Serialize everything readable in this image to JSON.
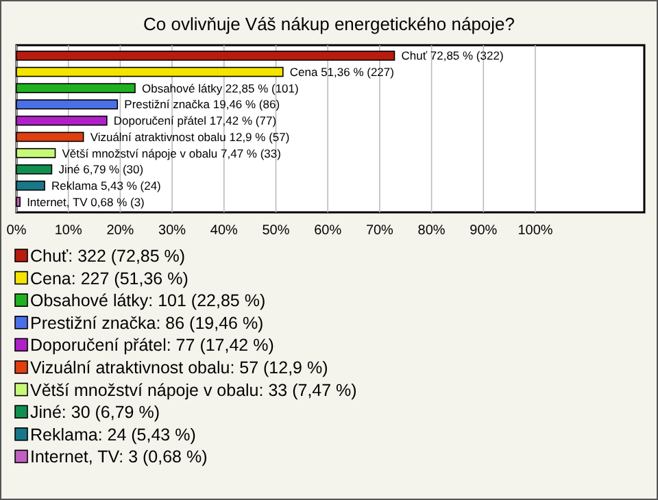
{
  "chart_data": {
    "type": "bar",
    "orientation": "horizontal",
    "title": "Co ovlivňuje Váš nákup energetického nápoje?",
    "categories": [
      null,
      null,
      null,
      null,
      null,
      null,
      null,
      null,
      null,
      null
    ],
    "values": [
      72.85,
      51.36,
      22.85,
      19.46,
      17.42,
      12.9,
      7.47,
      6.79,
      5.43,
      0.68
    ],
    "value_labels": [
      "Chuť 72,85 % (322)",
      "Cena 51,36 % (227)",
      "Obsahové látky 22,85 % (101)",
      "Prestižní značka 19,46 % (86)",
      "Doporučení přátel 17,42 % (77)",
      "Vizuální atraktivnost obalu 12,9 % (57)",
      "Větší množství nápoje v obalu 7,47 % (33)",
      "Jiné 6,79 % (30)",
      "Reklama 5,43 % (24)",
      "Internet, TV 0,68 % (3)"
    ],
    "colors": [
      "#b81c0c",
      "#f5e400",
      "#20b020",
      "#4a70e8",
      "#b020c8",
      "#e04010",
      "#c8f878",
      "#109050",
      "#187888",
      "#c060c0"
    ],
    "xlim": [
      0,
      121
    ],
    "xticks": [
      {
        "value": 0,
        "label": "0%"
      },
      {
        "value": 10,
        "label": "10%"
      },
      {
        "value": 20,
        "label": "20%"
      },
      {
        "value": 30,
        "label": "30%"
      },
      {
        "value": 40,
        "label": "40%"
      },
      {
        "value": 50,
        "label": "50%"
      },
      {
        "value": 60,
        "label": "60%"
      },
      {
        "value": 70,
        "label": "70%"
      },
      {
        "value": 80,
        "label": "80%"
      },
      {
        "value": 90,
        "label": "90%"
      },
      {
        "value": 100,
        "label": "100%"
      }
    ],
    "grid": "x",
    "tick_labels": "x",
    "annotations": [
      "Chuť: 322 (72,85 %)",
      "Cena: 227 (51,36 %)",
      "Obsahové látky: 101 (22,85 %)",
      "Prestižní značka: 86 (19,46 %)",
      "Doporučení přátel: 77 (17,42 %)",
      "Vizuální atraktivnost obalu: 57 (12,9 %)",
      "Větší množství nápoje v obalu: 33 (7,47 %)",
      "Jiné: 30 (6,79 %)",
      "Reklama: 24 (5,43 %)",
      "Internet, TV: 3 (0,68 %)"
    ]
  }
}
